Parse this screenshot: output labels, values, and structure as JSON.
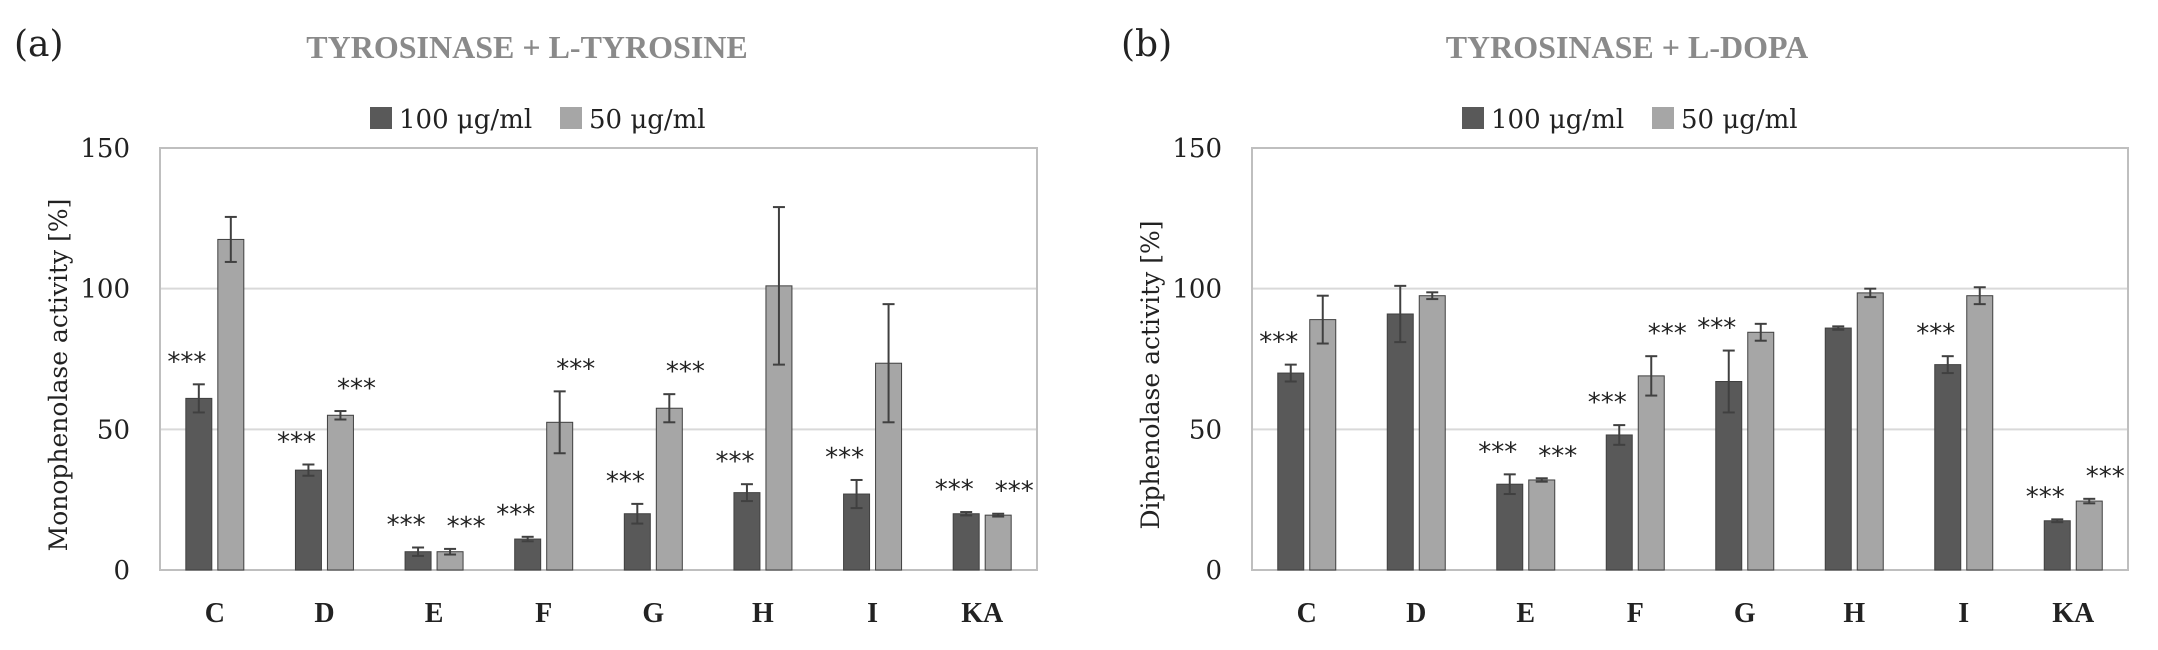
{
  "legend": {
    "series1": "100 μg/ml",
    "series2": "50 μg/ml"
  },
  "colors": {
    "series1": "#595959",
    "series2": "#a6a6a6",
    "grid": "#d9d9d9",
    "axis": "#bfbfbf",
    "title": "#8a8a8a"
  },
  "chart_data": [
    {
      "type": "bar",
      "panel": "(a)",
      "title": "TYROSINASE + L-TYROSINE",
      "ylabel": "Monophenolase activity [%]",
      "xlabel": "",
      "ylim": [
        0,
        150
      ],
      "yticks": [
        "0",
        "50",
        "100",
        "150"
      ],
      "grid": true,
      "legend_position": "top-center",
      "categories": [
        "C",
        "D",
        "E",
        "F",
        "G",
        "H",
        "I",
        "KA"
      ],
      "series": [
        {
          "name": "100 μg/ml",
          "values": [
            61,
            35.5,
            6.5,
            11,
            20,
            27.5,
            27,
            20
          ],
          "errors": [
            5,
            2,
            1.5,
            0.8,
            3.5,
            3,
            5,
            0.6
          ],
          "significance": [
            "***",
            "***",
            "***",
            "***",
            "***",
            "***",
            "***",
            "***"
          ]
        },
        {
          "name": "50 μg/ml",
          "values": [
            117.5,
            55,
            6.5,
            52.5,
            57.5,
            101,
            73.5,
            19.5
          ],
          "errors": [
            8,
            1.5,
            1,
            11,
            5,
            28,
            21,
            0.5
          ],
          "significance": [
            "",
            "***",
            "***",
            "***",
            "***",
            "",
            "",
            "***"
          ]
        }
      ]
    },
    {
      "type": "bar",
      "panel": "(b)",
      "title": "TYROSINASE + L-DOPA",
      "ylabel": "Diphenolase activity [%]",
      "xlabel": "",
      "ylim": [
        0,
        150
      ],
      "yticks": [
        "0",
        "50",
        "100",
        "150"
      ],
      "grid": true,
      "legend_position": "top-center",
      "categories": [
        "C",
        "D",
        "E",
        "F",
        "G",
        "H",
        "I",
        "KA"
      ],
      "series": [
        {
          "name": "100 μg/ml",
          "values": [
            70,
            91,
            30.5,
            48,
            67,
            86,
            73,
            17.5
          ],
          "errors": [
            3,
            10,
            3.5,
            3.5,
            11,
            0.6,
            3,
            0.5
          ],
          "significance": [
            "***",
            "",
            "***",
            "***",
            "***",
            "",
            "***",
            "***"
          ]
        },
        {
          "name": "50 μg/ml",
          "values": [
            89,
            97.5,
            32,
            69,
            84.5,
            98.5,
            97.5,
            24.5
          ],
          "errors": [
            8.5,
            1.2,
            0.6,
            7,
            3,
            1.5,
            3,
            0.8
          ],
          "significance": [
            "",
            "",
            "***",
            "***",
            "",
            "",
            "",
            "***"
          ]
        }
      ]
    }
  ]
}
